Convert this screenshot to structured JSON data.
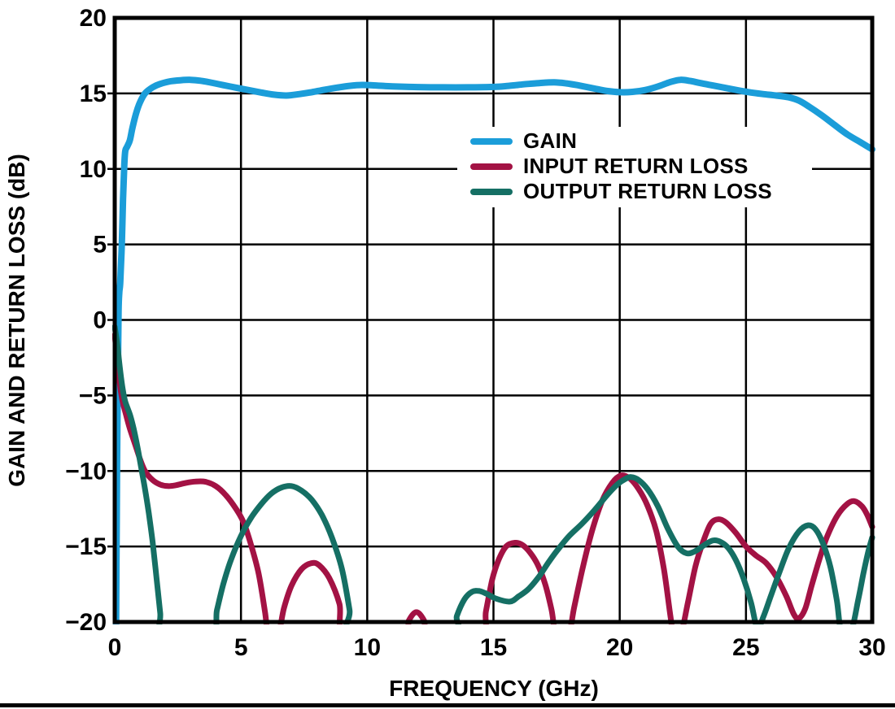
{
  "page": {
    "background": "#ffffff",
    "bottom_rule_color": "#000000"
  },
  "chart_data": {
    "type": "line",
    "title": "",
    "xlabel": "FREQUENCY (GHz)",
    "ylabel": "GAIN AND RETURN LOSS (dB)",
    "xlim": [
      0,
      30
    ],
    "ylim": [
      -20,
      20
    ],
    "xticks": [
      0,
      5,
      10,
      15,
      20,
      25,
      30
    ],
    "xtick_labels": [
      "0",
      "5",
      "10",
      "15",
      "20",
      "25",
      "30"
    ],
    "yticks": [
      20,
      15,
      10,
      5,
      0,
      -5,
      -10,
      -15,
      -20
    ],
    "ytick_labels": [
      "20",
      "15",
      "10",
      "5",
      "0",
      "−5",
      "−10",
      "−15",
      "−20"
    ],
    "grid": true,
    "grid_color": "#000000",
    "axis_color": "#000000",
    "legend_position": "inside-upper-middle",
    "series": [
      {
        "name": "GAIN",
        "color": "#1b9dd9",
        "line_width": 8,
        "points": [
          [
            0.05,
            -20.8
          ],
          [
            0.08,
            -13
          ],
          [
            0.1,
            -8
          ],
          [
            0.13,
            -3
          ],
          [
            0.15,
            0.5
          ],
          [
            0.18,
            1.8
          ],
          [
            0.22,
            2.5
          ],
          [
            0.28,
            5
          ],
          [
            0.33,
            8
          ],
          [
            0.38,
            10.3
          ],
          [
            0.42,
            11.2
          ],
          [
            0.5,
            11.5
          ],
          [
            0.6,
            11.9
          ],
          [
            0.7,
            12.7
          ],
          [
            0.85,
            13.7
          ],
          [
            1.0,
            14.4
          ],
          [
            1.2,
            15.0
          ],
          [
            1.5,
            15.4
          ],
          [
            1.8,
            15.63
          ],
          [
            2.2,
            15.8
          ],
          [
            2.6,
            15.87
          ],
          [
            3.0,
            15.9
          ],
          [
            3.4,
            15.84
          ],
          [
            3.8,
            15.72
          ],
          [
            4.3,
            15.55
          ],
          [
            4.8,
            15.38
          ],
          [
            5.3,
            15.22
          ],
          [
            5.8,
            15.06
          ],
          [
            6.3,
            14.92
          ],
          [
            6.8,
            14.86
          ],
          [
            7.3,
            14.95
          ],
          [
            7.8,
            15.08
          ],
          [
            8.3,
            15.24
          ],
          [
            8.8,
            15.38
          ],
          [
            9.3,
            15.5
          ],
          [
            9.8,
            15.56
          ],
          [
            10.4,
            15.52
          ],
          [
            11.0,
            15.46
          ],
          [
            12.0,
            15.42
          ],
          [
            13.0,
            15.4
          ],
          [
            14.0,
            15.4
          ],
          [
            15.0,
            15.43
          ],
          [
            15.6,
            15.5
          ],
          [
            16.2,
            15.6
          ],
          [
            16.8,
            15.68
          ],
          [
            17.4,
            15.73
          ],
          [
            17.9,
            15.66
          ],
          [
            18.4,
            15.52
          ],
          [
            19.0,
            15.32
          ],
          [
            19.5,
            15.16
          ],
          [
            20.0,
            15.08
          ],
          [
            20.5,
            15.1
          ],
          [
            21.0,
            15.22
          ],
          [
            21.5,
            15.45
          ],
          [
            22.0,
            15.75
          ],
          [
            22.4,
            15.9
          ],
          [
            22.8,
            15.82
          ],
          [
            23.2,
            15.68
          ],
          [
            23.7,
            15.52
          ],
          [
            24.2,
            15.36
          ],
          [
            24.7,
            15.2
          ],
          [
            25.2,
            15.06
          ],
          [
            25.7,
            14.95
          ],
          [
            26.2,
            14.86
          ],
          [
            26.7,
            14.74
          ],
          [
            27.1,
            14.52
          ],
          [
            27.5,
            14.12
          ],
          [
            28.0,
            13.55
          ],
          [
            28.5,
            12.92
          ],
          [
            29.0,
            12.3
          ],
          [
            29.5,
            11.8
          ],
          [
            30.0,
            11.3
          ]
        ]
      },
      {
        "name": "INPUT RETURN LOSS",
        "color": "#a31244",
        "line_width": 7,
        "points": [
          [
            0,
            -1.0
          ],
          [
            0.1,
            -2.6
          ],
          [
            0.2,
            -4.2
          ],
          [
            0.3,
            -5.3
          ],
          [
            0.45,
            -6.3
          ],
          [
            0.6,
            -7.2
          ],
          [
            0.8,
            -8.2
          ],
          [
            1.0,
            -9.2
          ],
          [
            1.2,
            -10.0
          ],
          [
            1.5,
            -10.6
          ],
          [
            1.8,
            -10.9
          ],
          [
            2.1,
            -11.0
          ],
          [
            2.4,
            -10.95
          ],
          [
            2.8,
            -10.8
          ],
          [
            3.2,
            -10.7
          ],
          [
            3.6,
            -10.72
          ],
          [
            4.0,
            -11.0
          ],
          [
            4.4,
            -11.6
          ],
          [
            4.8,
            -12.5
          ],
          [
            5.1,
            -13.4
          ],
          [
            5.4,
            -14.9
          ],
          [
            5.7,
            -16.8
          ],
          [
            5.95,
            -19.3
          ],
          [
            6.1,
            -21
          ],
          [
            6.45,
            -21
          ],
          [
            6.7,
            -19.1
          ],
          [
            7.0,
            -17.6
          ],
          [
            7.4,
            -16.5
          ],
          [
            7.8,
            -16.1
          ],
          [
            8.1,
            -16.25
          ],
          [
            8.5,
            -17.1
          ],
          [
            8.9,
            -18.8
          ],
          [
            9.15,
            -21
          ],
          [
            11.4,
            -21
          ],
          [
            11.65,
            -19.9
          ],
          [
            11.95,
            -19.35
          ],
          [
            12.25,
            -19.9
          ],
          [
            12.5,
            -21
          ],
          [
            14.5,
            -21
          ],
          [
            14.7,
            -19.3
          ],
          [
            14.95,
            -17.2
          ],
          [
            15.2,
            -15.9
          ],
          [
            15.5,
            -15.0
          ],
          [
            15.85,
            -14.75
          ],
          [
            16.15,
            -14.9
          ],
          [
            16.45,
            -15.4
          ],
          [
            16.75,
            -16.2
          ],
          [
            17.05,
            -17.5
          ],
          [
            17.3,
            -19.2
          ],
          [
            17.5,
            -21
          ],
          [
            17.95,
            -21
          ],
          [
            18.2,
            -19.0
          ],
          [
            18.55,
            -16.3
          ],
          [
            18.9,
            -14.0
          ],
          [
            19.3,
            -12.0
          ],
          [
            19.7,
            -10.8
          ],
          [
            20.05,
            -10.3
          ],
          [
            20.4,
            -10.5
          ],
          [
            20.75,
            -11.2
          ],
          [
            21.1,
            -12.3
          ],
          [
            21.45,
            -14.0
          ],
          [
            21.75,
            -16.5
          ],
          [
            22.0,
            -19.5
          ],
          [
            22.15,
            -21
          ],
          [
            22.4,
            -21
          ],
          [
            22.7,
            -18.7
          ],
          [
            23.0,
            -16.3
          ],
          [
            23.3,
            -14.7
          ],
          [
            23.6,
            -13.5
          ],
          [
            23.9,
            -13.2
          ],
          [
            24.2,
            -13.4
          ],
          [
            24.6,
            -14.1
          ],
          [
            25.0,
            -15.0
          ],
          [
            25.4,
            -15.6
          ],
          [
            25.8,
            -16.1
          ],
          [
            26.2,
            -17.0
          ],
          [
            26.6,
            -18.3
          ],
          [
            26.9,
            -19.5
          ],
          [
            27.1,
            -19.75
          ],
          [
            27.35,
            -19.1
          ],
          [
            27.6,
            -17.6
          ],
          [
            27.9,
            -15.9
          ],
          [
            28.2,
            -14.4
          ],
          [
            28.6,
            -13.0
          ],
          [
            29.0,
            -12.2
          ],
          [
            29.3,
            -12.0
          ],
          [
            29.6,
            -12.35
          ],
          [
            29.8,
            -12.9
          ],
          [
            30,
            -13.7
          ]
        ]
      },
      {
        "name": "OUTPUT RETURN LOSS",
        "color": "#156f64",
        "line_width": 7,
        "points": [
          [
            0,
            -0.45
          ],
          [
            0.1,
            -1.6
          ],
          [
            0.2,
            -3.1
          ],
          [
            0.3,
            -4.4
          ],
          [
            0.4,
            -5.3
          ],
          [
            0.5,
            -5.8
          ],
          [
            0.62,
            -6.35
          ],
          [
            0.75,
            -7.2
          ],
          [
            0.9,
            -8.4
          ],
          [
            1.05,
            -9.8
          ],
          [
            1.2,
            -11.2
          ],
          [
            1.35,
            -12.8
          ],
          [
            1.5,
            -14.7
          ],
          [
            1.65,
            -17.0
          ],
          [
            1.8,
            -19.4
          ],
          [
            1.92,
            -21
          ],
          [
            3.8,
            -21
          ],
          [
            4.05,
            -19.2
          ],
          [
            4.3,
            -17.5
          ],
          [
            4.6,
            -15.9
          ],
          [
            5.0,
            -14.3
          ],
          [
            5.4,
            -13.1
          ],
          [
            5.8,
            -12.2
          ],
          [
            6.2,
            -11.5
          ],
          [
            6.6,
            -11.1
          ],
          [
            7.0,
            -11.0
          ],
          [
            7.4,
            -11.3
          ],
          [
            7.8,
            -11.9
          ],
          [
            8.2,
            -12.9
          ],
          [
            8.6,
            -14.4
          ],
          [
            9.0,
            -16.5
          ],
          [
            9.3,
            -19.2
          ],
          [
            9.45,
            -21
          ],
          [
            13.3,
            -21
          ],
          [
            13.55,
            -19.6
          ],
          [
            13.85,
            -18.5
          ],
          [
            14.15,
            -18.0
          ],
          [
            14.45,
            -17.95
          ],
          [
            14.75,
            -18.15
          ],
          [
            15.1,
            -18.45
          ],
          [
            15.65,
            -18.65
          ],
          [
            16.0,
            -18.3
          ],
          [
            16.4,
            -17.8
          ],
          [
            16.8,
            -17.0
          ],
          [
            17.2,
            -16.0
          ],
          [
            17.6,
            -15.1
          ],
          [
            18.0,
            -14.3
          ],
          [
            18.5,
            -13.5
          ],
          [
            19.0,
            -12.6
          ],
          [
            19.5,
            -11.6
          ],
          [
            19.9,
            -10.9
          ],
          [
            20.2,
            -10.55
          ],
          [
            20.45,
            -10.4
          ],
          [
            20.75,
            -10.6
          ],
          [
            21.1,
            -11.2
          ],
          [
            21.5,
            -12.3
          ],
          [
            21.9,
            -13.8
          ],
          [
            22.3,
            -15.0
          ],
          [
            22.65,
            -15.45
          ],
          [
            23.0,
            -15.3
          ],
          [
            23.4,
            -14.85
          ],
          [
            23.7,
            -14.6
          ],
          [
            24.0,
            -14.7
          ],
          [
            24.3,
            -15.1
          ],
          [
            24.6,
            -15.9
          ],
          [
            24.9,
            -17.1
          ],
          [
            25.2,
            -18.7
          ],
          [
            25.45,
            -20.4
          ],
          [
            25.7,
            -19.6
          ],
          [
            26.0,
            -18.2
          ],
          [
            26.35,
            -16.6
          ],
          [
            26.7,
            -15.1
          ],
          [
            27.1,
            -14.0
          ],
          [
            27.45,
            -13.6
          ],
          [
            27.75,
            -13.85
          ],
          [
            28.05,
            -14.8
          ],
          [
            28.35,
            -16.4
          ],
          [
            28.6,
            -18.6
          ],
          [
            28.78,
            -20.7
          ],
          [
            29.15,
            -20.7
          ],
          [
            29.45,
            -18.5
          ],
          [
            29.65,
            -16.8
          ],
          [
            29.85,
            -15.3
          ],
          [
            30,
            -14.4
          ]
        ]
      }
    ]
  }
}
